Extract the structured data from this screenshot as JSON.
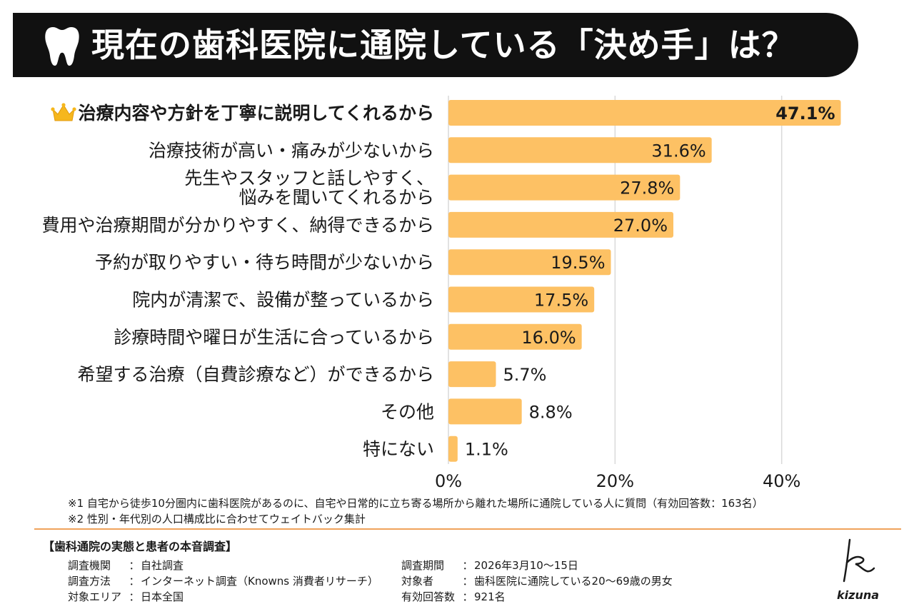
{
  "header": {
    "title": "現在の歯科医院に通院している「決め手」は？",
    "icon": "tooth-icon"
  },
  "chart_data": {
    "type": "bar",
    "orientation": "horizontal",
    "categories": [
      [
        "治療内容や方針を丁寧に説明してくれるから"
      ],
      [
        "治療技術が高い・痛みが少ないから"
      ],
      [
        "先生やスタッフと話しやすく、",
        "悩みを聞いてくれるから"
      ],
      [
        "費用や治療期間が分かりやすく、納得できるから"
      ],
      [
        "予約が取りやすい・待ち時間が少ないから"
      ],
      [
        "院内が清潔で、設備が整っているから"
      ],
      [
        "診療時間や曜日が生活に合っているから"
      ],
      [
        "希望する治療（自費診療など）ができるから"
      ],
      [
        "その他"
      ],
      [
        "特にない"
      ]
    ],
    "values": [
      47.1,
      31.6,
      27.8,
      27.0,
      19.5,
      17.5,
      16.0,
      5.7,
      8.8,
      1.1
    ],
    "value_labels": [
      "47.1%",
      "31.6%",
      "27.8%",
      "27.0%",
      "19.5%",
      "17.5%",
      "16.0%",
      "5.7%",
      "8.8%",
      "1.1%"
    ],
    "x_ticks": [
      0,
      20,
      40
    ],
    "x_tick_labels": [
      "0%",
      "20%",
      "40%"
    ],
    "xlim": [
      0,
      48
    ],
    "grid": "vertical",
    "legend": "none",
    "highlight_index": 0,
    "highlight_icon": "crown-icon",
    "bar_color": "#fdc164",
    "grid_color": "#d9d9d9"
  },
  "notes": [
    "※1 自宅から徒歩10分圏内に歯科医院があるのに、自宅や日常的に立ち寄る場所から離れた場所に通院している人に質問（有効回答数：163名）",
    "※2 性別・年代別の人口構成比に合わせてウェイトバック集計"
  ],
  "survey": {
    "title": "【歯科通院の実態と患者の本音調査】",
    "left": [
      {
        "key": "調査機関",
        "sep": "：",
        "value": "自社調査"
      },
      {
        "key": "調査方法",
        "sep": "：",
        "value": "インターネット調査（Knowns 消費者リサーチ）"
      },
      {
        "key": "対象エリア",
        "sep": "：",
        "value": "日本全国"
      }
    ],
    "right": [
      {
        "key": "調査期間",
        "sep": "：",
        "value": "2026年3月10〜15日"
      },
      {
        "key": "対象者",
        "sep": "：",
        "value": "歯科医院に通院している20〜69歳の男女"
      },
      {
        "key": "有効回答数",
        "sep": "：",
        "value": "921名"
      }
    ]
  },
  "logo": {
    "text": "kizuna",
    "icon": "kizuna-signature-icon"
  }
}
